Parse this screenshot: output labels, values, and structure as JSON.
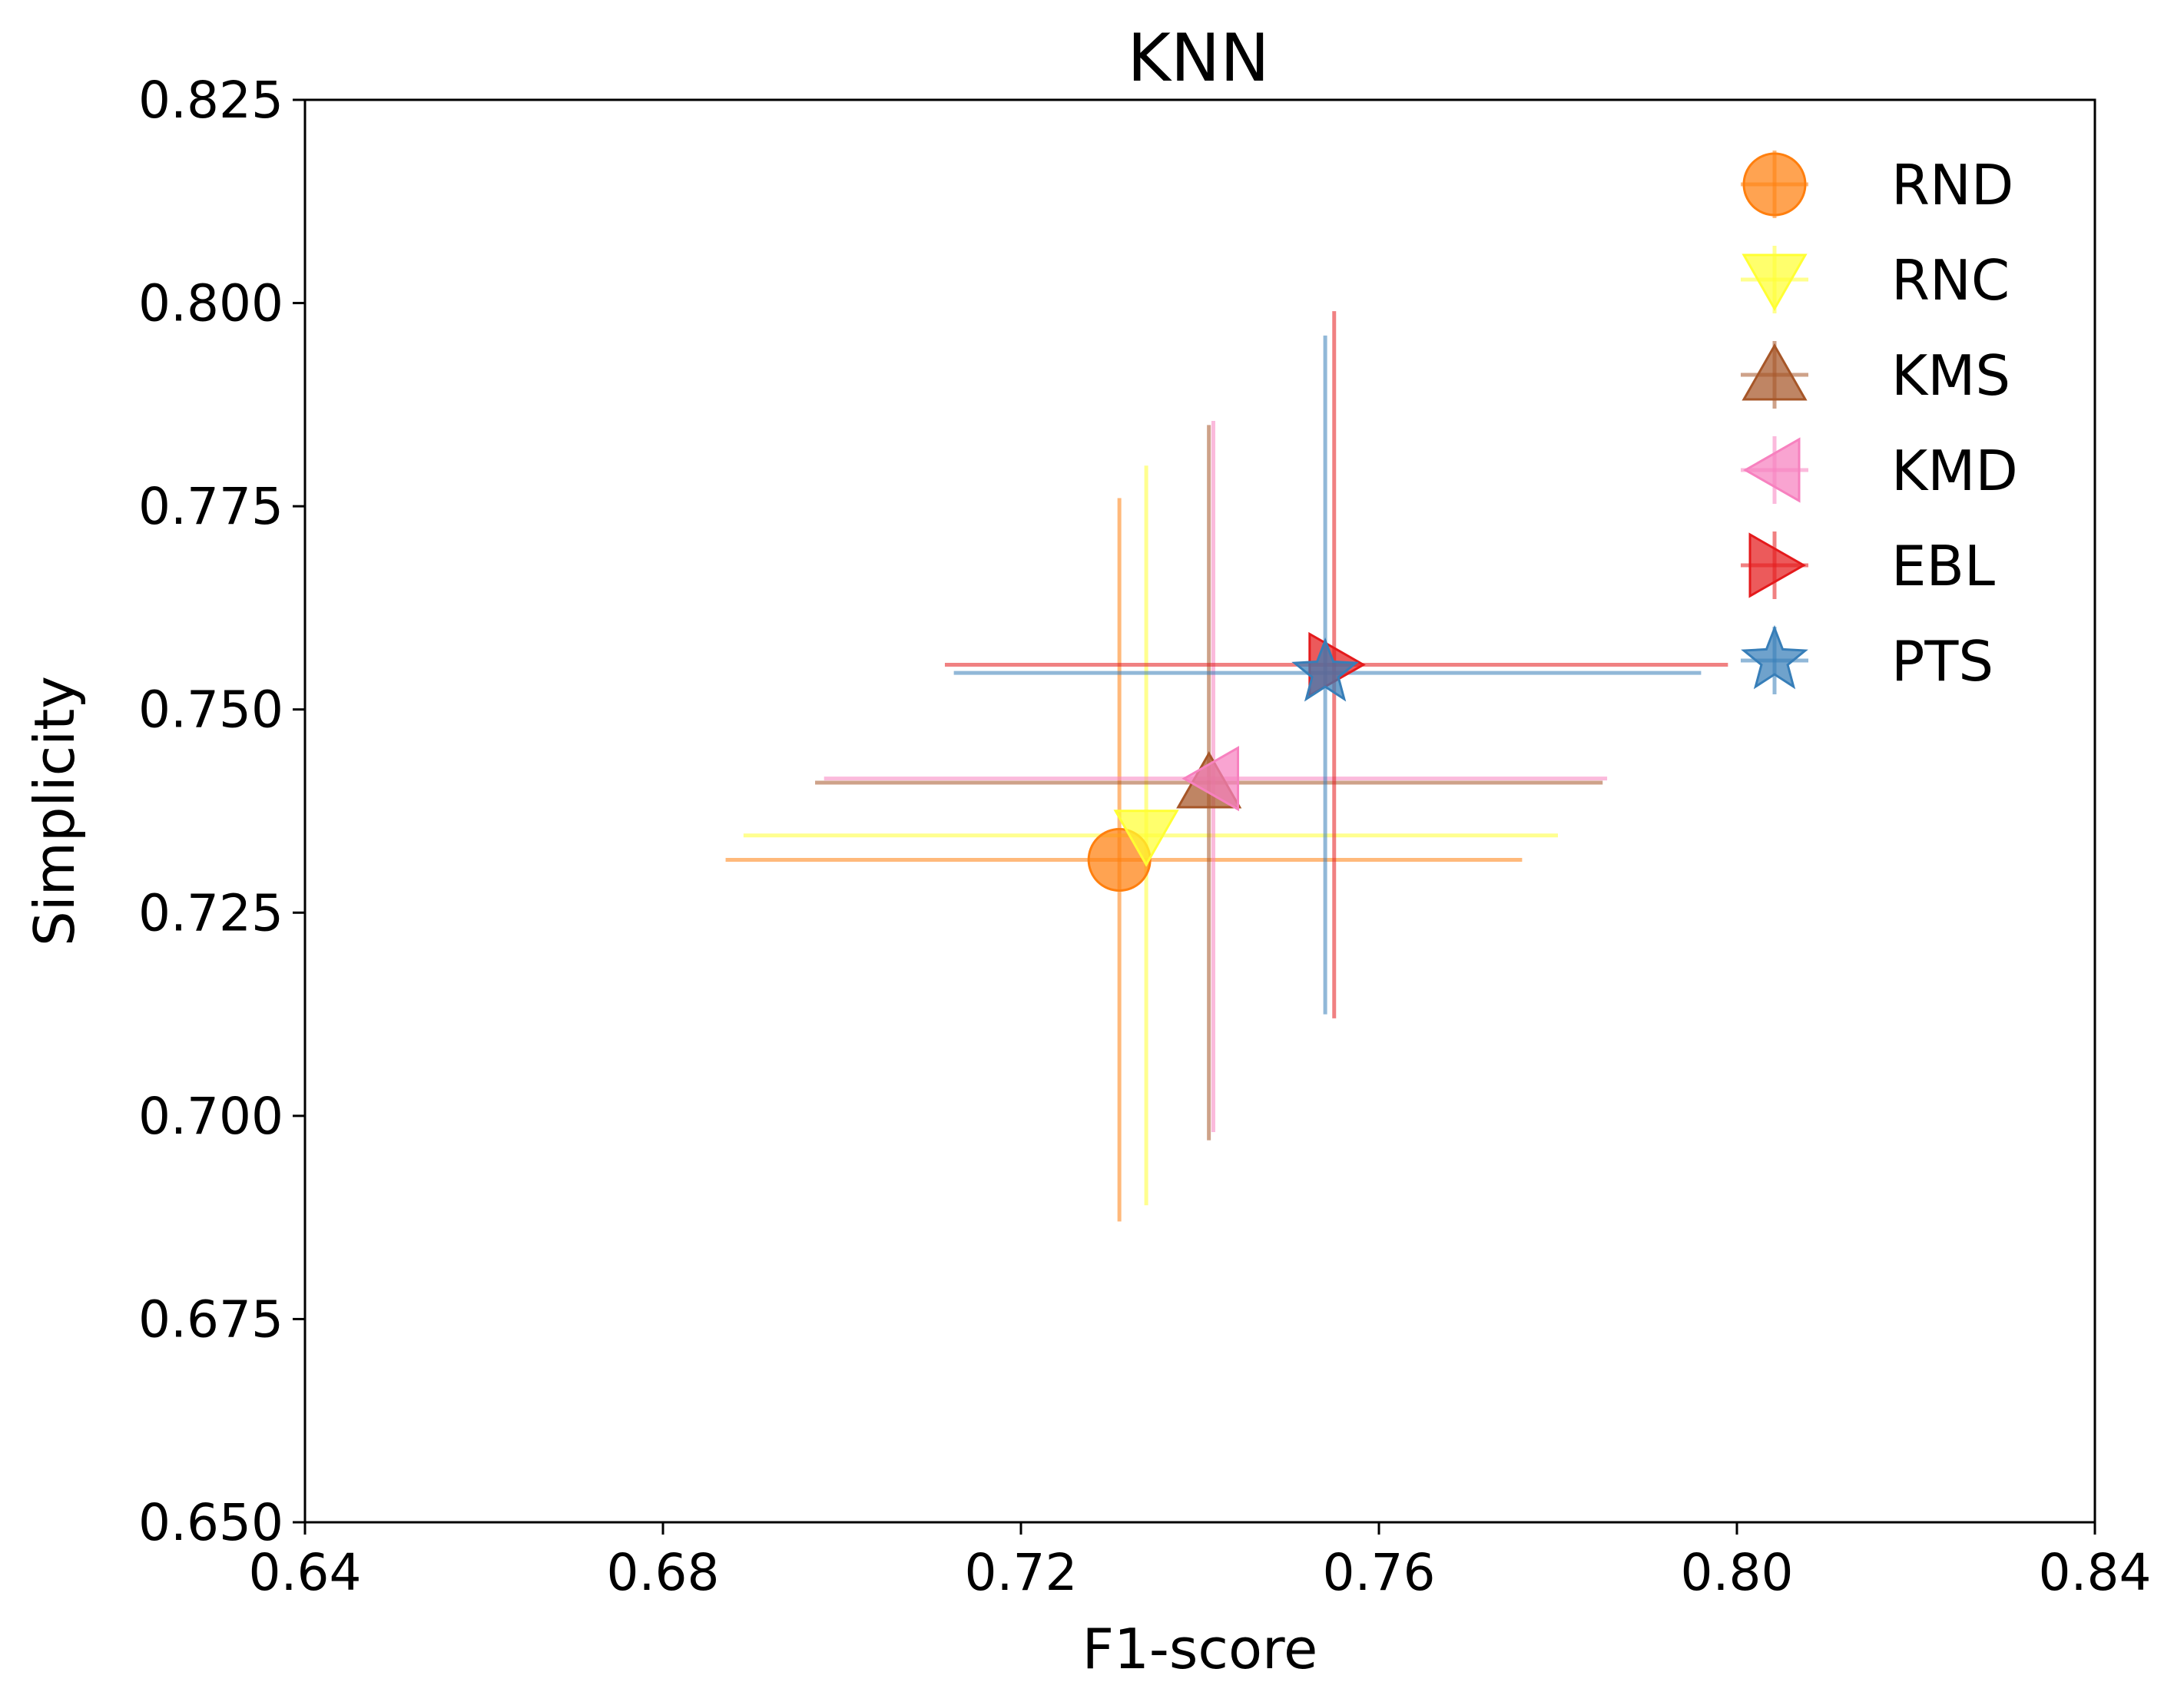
{
  "chart_data": {
    "type": "scatter",
    "title": "KNN",
    "xlabel": "F1-score",
    "ylabel": "Simplicity",
    "xlim": [
      0.64,
      0.84
    ],
    "ylim": [
      0.65,
      0.825
    ],
    "xticks": [
      "0.64",
      "0.68",
      "0.72",
      "0.76",
      "0.80",
      "0.84"
    ],
    "yticks": [
      "0.650",
      "0.675",
      "0.700",
      "0.725",
      "0.750",
      "0.775",
      "0.800",
      "0.825"
    ],
    "grid": false,
    "legend_position": "top-right",
    "series": [
      {
        "name": "RND",
        "marker": "circle",
        "color": "#ff7f0e",
        "x": 0.731,
        "y": 0.7315,
        "xerr": [
          0.687,
          0.776
        ],
        "yerr": [
          0.687,
          0.776
        ]
      },
      {
        "name": "RNC",
        "marker": "triangle-down",
        "color": "#ffff33",
        "x": 0.734,
        "y": 0.7345,
        "xerr": [
          0.689,
          0.78
        ],
        "yerr": [
          0.689,
          0.78
        ]
      },
      {
        "name": "KMS",
        "marker": "triangle-up",
        "color": "#a65628",
        "x": 0.741,
        "y": 0.741,
        "xerr": [
          0.697,
          0.785
        ],
        "yerr": [
          0.697,
          0.785
        ]
      },
      {
        "name": "KMD",
        "marker": "triangle-left",
        "color": "#f781bf",
        "x": 0.7415,
        "y": 0.7415,
        "xerr": [
          0.698,
          0.7855
        ],
        "yerr": [
          0.698,
          0.7855
        ]
      },
      {
        "name": "EBL",
        "marker": "triangle-right",
        "color": "#e41a1c",
        "x": 0.755,
        "y": 0.7555,
        "xerr": [
          0.7115,
          0.799
        ],
        "yerr": [
          0.712,
          0.799
        ]
      },
      {
        "name": "PTS",
        "marker": "star",
        "color": "#377eb8",
        "x": 0.754,
        "y": 0.7545,
        "xerr": [
          0.7125,
          0.796
        ],
        "yerr": [
          0.7125,
          0.796
        ]
      }
    ]
  }
}
